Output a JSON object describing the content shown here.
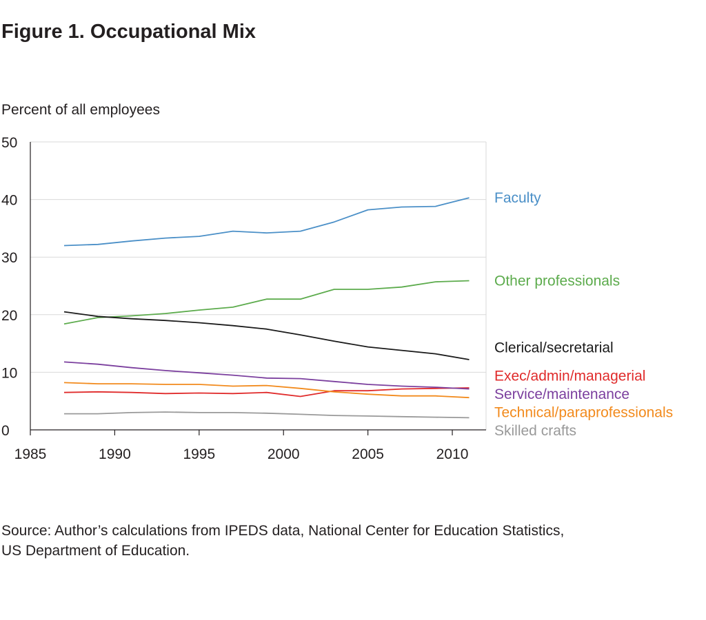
{
  "figure_title": "Figure 1. Occupational Mix",
  "source_lines": [
    "Source: Author’s calculations from IPEDS data, National Center for Education Statistics,",
    "US Department of Education."
  ],
  "chart_data": {
    "type": "line",
    "title": "Figure 1. Occupational Mix",
    "xlabel": "",
    "ylabel": "Percent of all employees",
    "xlim": [
      1985,
      2012
    ],
    "ylim": [
      0,
      50
    ],
    "x_ticks": [
      1985,
      1990,
      1995,
      2000,
      2005,
      2010
    ],
    "y_ticks": [
      0,
      10,
      20,
      30,
      40,
      50
    ],
    "grid": true,
    "legend": "right-end labels",
    "x": [
      1987,
      1989,
      1991,
      1993,
      1995,
      1997,
      1999,
      2001,
      2003,
      2005,
      2007,
      2009,
      2011
    ],
    "series": [
      {
        "name": "Faculty",
        "color": "#4a8fc7",
        "values": [
          32.0,
          32.2,
          32.8,
          33.3,
          33.6,
          34.5,
          34.2,
          34.5,
          36.1,
          38.2,
          38.7,
          38.8,
          40.3
        ]
      },
      {
        "name": "Other professionals",
        "color": "#5cab4c",
        "values": [
          18.4,
          19.5,
          19.8,
          20.2,
          20.8,
          21.3,
          22.7,
          22.7,
          24.4,
          24.4,
          24.8,
          25.7,
          25.9
        ]
      },
      {
        "name": "Clerical/secretarial",
        "color": "#1a1a1a",
        "values": [
          20.5,
          19.7,
          19.3,
          19.0,
          18.6,
          18.1,
          17.5,
          16.5,
          15.4,
          14.4,
          13.8,
          13.2,
          12.2
        ]
      },
      {
        "name": "Exec/admin/managerial",
        "color": "#e02b2b",
        "values": [
          6.5,
          6.6,
          6.5,
          6.3,
          6.4,
          6.3,
          6.5,
          5.8,
          6.8,
          6.8,
          7.1,
          7.2,
          7.3
        ]
      },
      {
        "name": "Service/maintenance",
        "color": "#7b3f9e",
        "values": [
          11.8,
          11.4,
          10.8,
          10.3,
          9.9,
          9.5,
          9.0,
          8.9,
          8.4,
          7.9,
          7.6,
          7.4,
          7.1
        ]
      },
      {
        "name": "Technical/paraprofessionals",
        "color": "#f28a1c",
        "values": [
          8.2,
          8.0,
          8.0,
          7.9,
          7.9,
          7.6,
          7.7,
          7.2,
          6.6,
          6.2,
          5.9,
          5.9,
          5.6
        ]
      },
      {
        "name": "Skilled crafts",
        "color": "#999999",
        "values": [
          2.8,
          2.8,
          3.0,
          3.1,
          3.0,
          3.0,
          2.9,
          2.7,
          2.5,
          2.4,
          2.3,
          2.2,
          2.1
        ]
      }
    ]
  }
}
